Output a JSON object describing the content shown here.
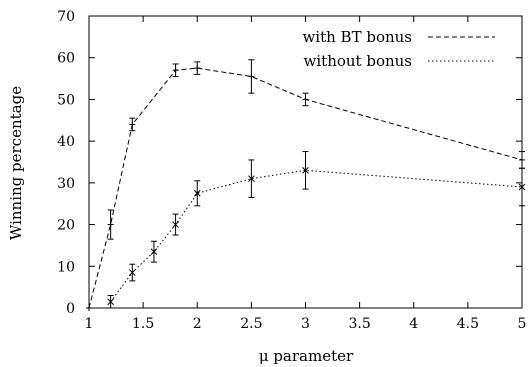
{
  "chart_data": {
    "type": "line",
    "title": "",
    "xlabel": "μ parameter",
    "ylabel": "Winning percentage",
    "xlim": [
      1,
      5
    ],
    "ylim": [
      0,
      70
    ],
    "xticks": [
      "1",
      "1.5",
      "2",
      "2.5",
      "3",
      "3.5",
      "4",
      "4.5",
      "5"
    ],
    "yticks": [
      "0",
      "10",
      "20",
      "30",
      "40",
      "50",
      "60",
      "70"
    ],
    "grid": false,
    "legend_position": "top-right",
    "series": [
      {
        "name": "with BT bonus",
        "style": "dashed",
        "points": [
          {
            "x": 1.0,
            "y": 0,
            "err": 0
          },
          {
            "x": 1.2,
            "y": 20,
            "err": 3.5
          },
          {
            "x": 1.4,
            "y": 44,
            "err": 1.5
          },
          {
            "x": 1.8,
            "y": 57,
            "err": 1.5
          },
          {
            "x": 2.0,
            "y": 57.5,
            "err": 1.5
          },
          {
            "x": 2.5,
            "y": 55.5,
            "err": 4
          },
          {
            "x": 3.0,
            "y": 50,
            "err": 1.5
          },
          {
            "x": 5.0,
            "y": 35.5,
            "err": 2
          }
        ]
      },
      {
        "name": "without bonus",
        "style": "dotted",
        "points": [
          {
            "x": 1.2,
            "y": 1.5,
            "err": 1.5
          },
          {
            "x": 1.4,
            "y": 8.5,
            "err": 2
          },
          {
            "x": 1.6,
            "y": 13.5,
            "err": 2.5
          },
          {
            "x": 1.8,
            "y": 20,
            "err": 2.5
          },
          {
            "x": 2.0,
            "y": 27.5,
            "err": 3
          },
          {
            "x": 2.5,
            "y": 31,
            "err": 4.5
          },
          {
            "x": 3.0,
            "y": 33,
            "err": 4.5
          },
          {
            "x": 5.0,
            "y": 29,
            "err": 4.5
          }
        ]
      }
    ]
  }
}
